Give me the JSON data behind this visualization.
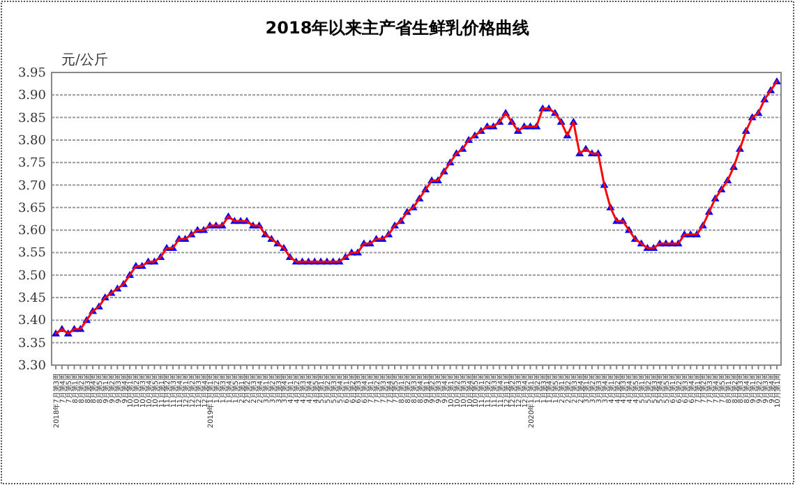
{
  "chart_data": {
    "type": "line",
    "title": "2018年以来主产省生鲜乳价格曲线",
    "ylabel": "元/公斤",
    "categories": [
      "2018年7月第3周",
      "7月第4周",
      "7月第5周",
      "8月第1周",
      "8月第2周",
      "8月第3周",
      "8月第4周",
      "8月第5周",
      "9月第1周",
      "9月第2周",
      "9月第3周",
      "9月第4周",
      "10月第1周",
      "10月第2周",
      "10月第3周",
      "10月第4周",
      "10月第5周",
      "11月第1周",
      "11月第2周",
      "11月第3周",
      "11月第4周",
      "12月第1周",
      "12月第2周",
      "12月第3周",
      "12月第4周",
      "2019年1月第1周",
      "1月第2周",
      "1月第3周",
      "1月第4周",
      "1月第5周",
      "2月第1周",
      "2月第2周",
      "2月第3周",
      "2月第4周",
      "3月第1周",
      "3月第2周",
      "3月第3周",
      "3月第4周",
      "4月第1周",
      "4月第2周",
      "4月第3周",
      "4月第4周",
      "4月第5周",
      "5月第1周",
      "5月第2周",
      "5月第3周",
      "5月第4周",
      "6月第1周",
      "6月第2周",
      "6月第3周",
      "6月第4周",
      "7月第1周",
      "7月第2周",
      "7月第3周",
      "7月第4周",
      "7月第5周",
      "8月第1周",
      "8月第2周",
      "8月第3周",
      "8月第4周",
      "9月第1周",
      "9月第2周",
      "9月第3周",
      "9月第4周",
      "10月第1周",
      "10月第2周",
      "10月第3周",
      "10月第4周",
      "10月第5周",
      "11月第1周",
      "11月第2周",
      "11月第3周",
      "11月第4周",
      "12月第1周",
      "12月第2周",
      "12月第3周",
      "12月第4周",
      "2020年1月第1周",
      "1月第2周",
      "1月第3周",
      "1月第4周",
      "1月第5周",
      "2月第1周",
      "2月第2周",
      "2月第3周",
      "2月第4周",
      "3月第1周",
      "3月第2周",
      "3月第3周",
      "3月第4周",
      "4月第1周",
      "4月第2周",
      "4月第3周",
      "4月第4周",
      "4月第5周",
      "5月第1周",
      "5月第2周",
      "5月第3周",
      "5月第4周",
      "5月第5周",
      "6月第1周",
      "6月第2周",
      "6月第3周",
      "6月第4周",
      "7月第1周",
      "7月第2周",
      "7月第3周",
      "7月第4周",
      "7月第5周",
      "8月第1周",
      "8月第2周",
      "8月第3周",
      "8月第4周",
      "9月第1周",
      "9月第2周",
      "9月第3周",
      "9月第4周",
      "10月第1周"
    ],
    "series": [
      {
        "color": "#ff0000",
        "colors": [
          "#0000ff",
          "#0000ff",
          "#0000ff",
          "#0000ff",
          "#0000ff",
          "#0000ff",
          "#0000ff",
          "#0000ff",
          "#0000ff",
          "#0000ff",
          "#0000ff",
          "#0000ff",
          "#0000ff",
          "#0000ff",
          "#0000ff",
          "#0000ff",
          "#0000ff",
          "#0000ff",
          "#0000ff",
          "#0000ff",
          "#0000ff",
          "#0000ff",
          "#0000ff",
          "#0000ff",
          "#0000ff",
          "#0000ff",
          "#0000ff",
          "#0000ff",
          "#0000ff",
          "#0000ff",
          "#0000ff",
          "#0000ff",
          "#0000ff",
          "#0000ff",
          "#0000ff",
          "#0000ff",
          "#0000ff",
          "#0000ff",
          "#0000ff",
          "#0000ff",
          "#0000ff",
          "#0000ff",
          "#0000ff",
          "#0000ff",
          "#0000ff",
          "#0000ff",
          "#0000ff",
          "#0000ff",
          "#0000ff",
          "#0000ff",
          "#0000ff",
          "#0000ff",
          "#0000ff",
          "#0000ff",
          "#0000ff",
          "#0000ff",
          "#0000ff",
          "#0000ff",
          "#0000ff",
          "#0000ff",
          "#0000ff",
          "#0000ff",
          "#0000ff",
          "#0000ff",
          "#0000ff",
          "#0000ff",
          "#0000ff",
          "#0000ff",
          "#0000ff",
          "#0000ff",
          "#0000ff",
          "#0000ff",
          "#0000ff",
          "#0000ff",
          "#0000ff",
          "#0000ff",
          "#0000ff",
          "#0000ff",
          "#0000ff",
          "#0000ff",
          "#0000ff",
          "#0000ff",
          "#0000ff",
          "#0000ff",
          "#0000ff",
          "#0000ff",
          "#0000ff",
          "#0000ff",
          "#0000ff",
          "#0000ff",
          "#0000ff",
          "#0000ff",
          "#0000ff",
          "#0000ff",
          "#0000ff",
          "#0000ff",
          "#0000ff",
          "#0000ff",
          "#0000ff",
          "#0000ff",
          "#0000ff",
          "#0000ff",
          "#0000ff",
          "#0000ff",
          "#0000ff",
          "#0000ff",
          "#0000ff",
          "#0000ff",
          "#0000ff",
          "#0000ff",
          "#0000ff",
          "#0000ff",
          "#0000ff",
          "#0000ff",
          "#0000ff",
          "#0000ff",
          "#0000ff",
          "#0000ff"
        ],
        "values": [
          3.37,
          3.38,
          3.37,
          3.38,
          3.38,
          3.4,
          3.42,
          3.43,
          3.45,
          3.46,
          3.47,
          3.48,
          3.5,
          3.52,
          3.52,
          3.53,
          3.53,
          3.54,
          3.56,
          3.56,
          3.58,
          3.58,
          3.59,
          3.6,
          3.6,
          3.61,
          3.61,
          3.61,
          3.63,
          3.62,
          3.62,
          3.62,
          3.61,
          3.61,
          3.59,
          3.58,
          3.57,
          3.56,
          3.54,
          3.53,
          3.53,
          3.53,
          3.53,
          3.53,
          3.53,
          3.53,
          3.53,
          3.54,
          3.55,
          3.55,
          3.57,
          3.57,
          3.58,
          3.58,
          3.59,
          3.61,
          3.62,
          3.64,
          3.65,
          3.67,
          3.69,
          3.71,
          3.71,
          3.73,
          3.75,
          3.77,
          3.78,
          3.8,
          3.81,
          3.82,
          3.83,
          3.83,
          3.84,
          3.86,
          3.84,
          3.82,
          3.83,
          3.83,
          3.83,
          3.87,
          3.87,
          3.86,
          3.84,
          3.81,
          3.84,
          3.77,
          3.78,
          3.77,
          3.77,
          3.7,
          3.65,
          3.62,
          3.62,
          3.6,
          3.58,
          3.57,
          3.56,
          3.56,
          3.57,
          3.57,
          3.57,
          3.57,
          3.59,
          3.59,
          3.59,
          3.61,
          3.64,
          3.67,
          3.69,
          3.71,
          3.74,
          3.78,
          3.82,
          3.85,
          3.86,
          3.89,
          3.91,
          3.93
        ]
      }
    ],
    "ylim": [
      3.3,
      3.95
    ],
    "yticks": [
      {
        "value": 3.3,
        "label": "3.30"
      },
      {
        "value": 3.35,
        "label": "3.35"
      },
      {
        "value": 3.4,
        "label": "3.40"
      },
      {
        "value": 3.45,
        "label": "3.45"
      },
      {
        "value": 3.5,
        "label": "3.50"
      },
      {
        "value": 3.55,
        "label": "3.55"
      },
      {
        "value": 3.6,
        "label": "3.60"
      },
      {
        "value": 3.65,
        "label": "3.65"
      },
      {
        "value": 3.7,
        "label": "3.70"
      },
      {
        "value": 3.75,
        "label": "3.75"
      },
      {
        "value": 3.8,
        "label": "3.80"
      },
      {
        "value": 3.85,
        "label": "3.85"
      },
      {
        "value": 3.9,
        "label": "3.90"
      },
      {
        "value": 3.95,
        "label": "3.95"
      }
    ],
    "grid": "y",
    "marker": "triangle",
    "line_style": "solid"
  }
}
